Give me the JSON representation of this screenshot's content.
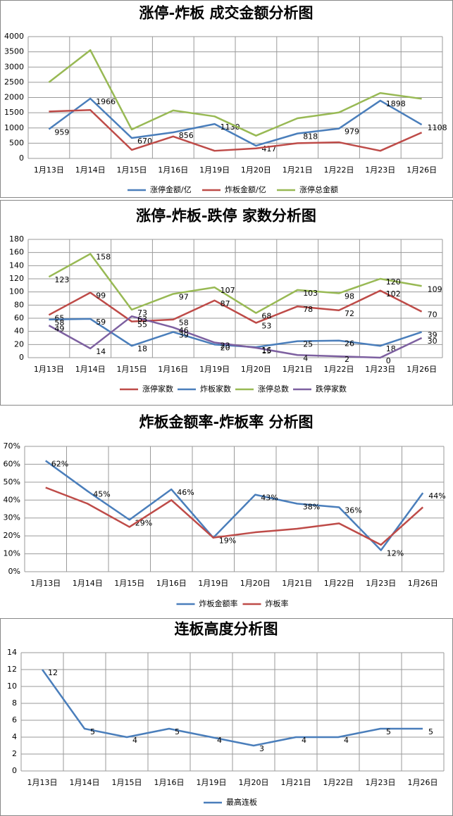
{
  "chart_data": [
    {
      "type": "line",
      "title": "涨停-炸板 成交金额分析图",
      "categories": [
        "1月13日",
        "1月14日",
        "1月15日",
        "1月16日",
        "1月19日",
        "1月20日",
        "1月21日",
        "1月22日",
        "1月23日",
        "1月26日"
      ],
      "series": [
        {
          "name": "涨停金额/亿",
          "color": "#4a7ebb",
          "show_labels": true,
          "values": [
            959,
            1966,
            670,
            856,
            1130,
            417,
            818,
            979,
            1898,
            1108
          ]
        },
        {
          "name": "炸板金额/亿",
          "color": "#be4b48",
          "show_labels": false,
          "values": [
            1540,
            1590,
            280,
            720,
            250,
            330,
            500,
            530,
            250,
            850
          ]
        },
        {
          "name": "涨停总金额",
          "color": "#98b954",
          "show_labels": false,
          "values": [
            2499,
            3556,
            950,
            1576,
            1380,
            747,
            1318,
            1509,
            2148,
            1958
          ]
        }
      ],
      "ylim": [
        0,
        4000
      ],
      "yticks": [
        0,
        500,
        1000,
        1500,
        2000,
        2500,
        3000,
        3500,
        4000
      ],
      "grid": true,
      "legend": "bottom"
    },
    {
      "type": "line",
      "title": "涨停-炸板-跌停 家数分析图",
      "categories": [
        "1月13日",
        "1月14日",
        "1月15日",
        "1月16日",
        "1月19日",
        "1月20日",
        "1月21日",
        "1月22日",
        "1月23日",
        "1月26日"
      ],
      "series": [
        {
          "name": "涨停家数",
          "color": "#be4b48",
          "show_labels": true,
          "values": [
            65,
            99,
            55,
            58,
            87,
            53,
            78,
            72,
            102,
            70
          ]
        },
        {
          "name": "炸板家数",
          "color": "#4a7ebb",
          "show_labels": true,
          "values": [
            58,
            59,
            18,
            39,
            20,
            16,
            25,
            26,
            18,
            39
          ]
        },
        {
          "name": "涨停总数",
          "color": "#98b954",
          "show_labels": true,
          "values": [
            123,
            158,
            73,
            97,
            107,
            68,
            103,
            98,
            120,
            109
          ]
        },
        {
          "name": "跌停家数",
          "color": "#7d60a0",
          "show_labels": true,
          "values": [
            49,
            14,
            63,
            46,
            23,
            15,
            4,
            2,
            0,
            30
          ]
        }
      ],
      "ylim": [
        0,
        180
      ],
      "yticks": [
        0,
        20,
        40,
        60,
        80,
        100,
        120,
        140,
        160,
        180
      ],
      "grid": true,
      "legend": "bottom"
    },
    {
      "type": "line",
      "title": "炸板金额率-炸板率 分析图",
      "categories": [
        "1月13日",
        "1月14日",
        "1月15日",
        "1月16日",
        "1月19日",
        "1月20日",
        "1月21日",
        "1月22日",
        "1月23日",
        "1月26日"
      ],
      "series": [
        {
          "name": "炸板金额率",
          "color": "#4a7ebb",
          "show_labels": true,
          "values": [
            62,
            45,
            29,
            46,
            19,
            43,
            38,
            36,
            12,
            44
          ],
          "value_labels": [
            "62%",
            "45%",
            "29%",
            "46%",
            "19%",
            "43%",
            "38%",
            "36%",
            "12%",
            "44%"
          ]
        },
        {
          "name": "炸板率",
          "color": "#be4b48",
          "show_labels": false,
          "values": [
            47,
            38,
            25,
            40,
            19,
            22,
            24,
            27,
            15,
            36
          ]
        }
      ],
      "ylim": [
        0,
        70
      ],
      "yticks": [
        {
          "value": 0,
          "label": "0%"
        },
        {
          "value": 10,
          "label": "10%"
        },
        {
          "value": 20,
          "label": "20%"
        },
        {
          "value": 30,
          "label": "30%"
        },
        {
          "value": 40,
          "label": "40%"
        },
        {
          "value": 50,
          "label": "50%"
        },
        {
          "value": 60,
          "label": "60%"
        },
        {
          "value": 70,
          "label": "70%"
        }
      ],
      "grid": true,
      "legend": "bottom"
    },
    {
      "type": "line",
      "title": "连板高度分析图",
      "categories": [
        "1月13日",
        "1月14日",
        "1月15日",
        "1月16日",
        "1月19日",
        "1月20日",
        "1月21日",
        "1月22日",
        "1月23日",
        "1月26日"
      ],
      "series": [
        {
          "name": "最高连板",
          "color": "#4a7ebb",
          "show_labels": true,
          "values": [
            12,
            5,
            4,
            5,
            4,
            3,
            4,
            4,
            5,
            5
          ]
        }
      ],
      "ylim": [
        0,
        14
      ],
      "yticks": [
        0,
        2,
        4,
        6,
        8,
        10,
        12,
        14
      ],
      "grid": true,
      "legend": "bottom"
    }
  ]
}
